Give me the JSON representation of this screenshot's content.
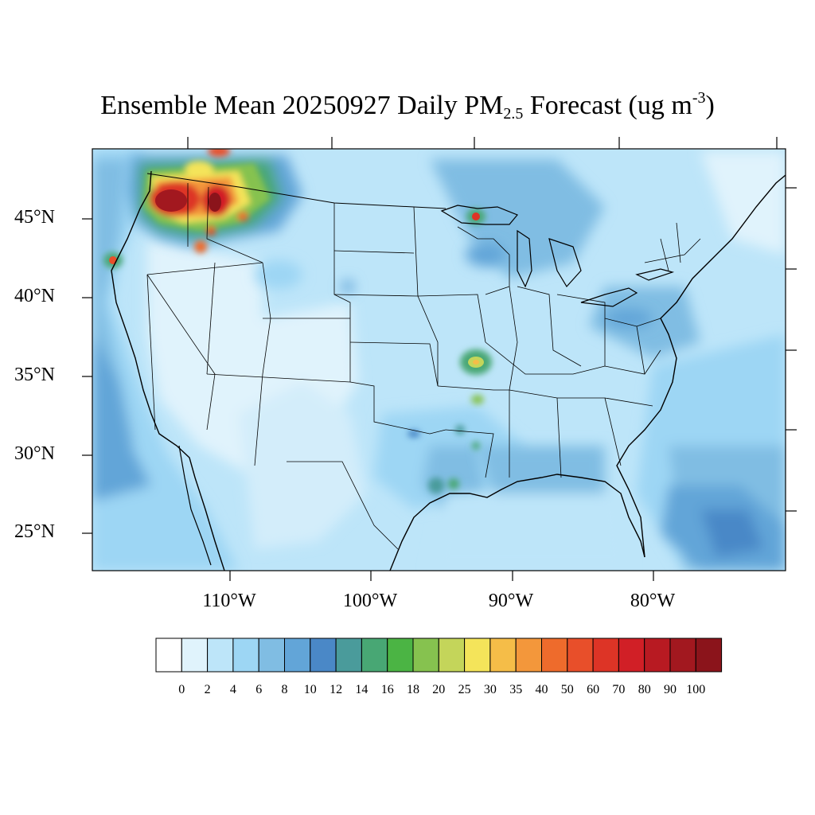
{
  "title": {
    "main": "Ensemble Mean 20250927 Daily PM",
    "sub": "2.5",
    "after": " Forecast (ug m",
    "sup": "-3",
    "close": ")"
  },
  "map": {
    "lat_labels": [
      "45°N",
      "40°N",
      "35°N",
      "30°N",
      "25°N"
    ],
    "lon_labels": [
      "110°W",
      "100°W",
      "90°W",
      "80°W"
    ],
    "background_color": "#c5e6f7",
    "frame_color": "#000000"
  },
  "colorbar": {
    "labels": [
      "0",
      "2",
      "4",
      "6",
      "8",
      "10",
      "12",
      "14",
      "16",
      "18",
      "20",
      "25",
      "30",
      "35",
      "40",
      "50",
      "60",
      "70",
      "80",
      "90",
      "100"
    ],
    "colors": [
      "#ffffff",
      "#e0f3fc",
      "#bde5f9",
      "#9dd6f4",
      "#80bde3",
      "#62a5d8",
      "#4a88c7",
      "#4a9b9b",
      "#48a774",
      "#4bb444",
      "#86c24f",
      "#c4d55a",
      "#f4e45a",
      "#f5bd48",
      "#f3973b",
      "#ee6b2c",
      "#e84f2a",
      "#dd3426",
      "#d11f26",
      "#b81a22",
      "#a2181f",
      "#8b141b"
    ]
  },
  "hotspots": [
    {
      "name": "idaho-montana-smoke",
      "level": 100
    },
    {
      "name": "montana-smoke",
      "level": 100
    },
    {
      "name": "oregon-coast-smoke",
      "level": 60
    },
    {
      "name": "lake-superior-smoke",
      "level": 50
    },
    {
      "name": "arkansas-smoke",
      "level": 30
    },
    {
      "name": "texas-louisiana-coast",
      "level": 18
    }
  ]
}
